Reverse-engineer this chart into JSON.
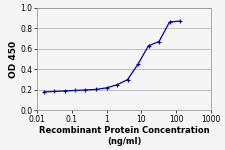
{
  "x": [
    0.016,
    0.031,
    0.063,
    0.125,
    0.25,
    0.5,
    1.0,
    2.0,
    4.0,
    8.0,
    16.0,
    32.0,
    64.0,
    128.0
  ],
  "y": [
    0.18,
    0.185,
    0.19,
    0.195,
    0.2,
    0.205,
    0.22,
    0.25,
    0.3,
    0.45,
    0.63,
    0.67,
    0.86,
    0.87
  ],
  "line_color": "#0000aa",
  "marker": "+",
  "marker_color": "#0000aa",
  "marker_size": 3.5,
  "marker_linewidth": 0.8,
  "line_width": 0.9,
  "xlabel_line1": "Recombinant Protein Concentration",
  "xlabel_line2": "(ng/ml)",
  "ylabel": "OD 450",
  "xlim": [
    0.01,
    1000
  ],
  "ylim": [
    0.0,
    1.0
  ],
  "yticks": [
    0.0,
    0.2,
    0.4,
    0.6,
    0.8,
    1.0
  ],
  "xtick_labels": [
    "0.01",
    "0.1",
    "1",
    "10",
    "100",
    "1000"
  ],
  "xtick_vals": [
    0.01,
    0.1,
    1,
    10,
    100,
    1000
  ],
  "xlabel_fontsize": 6.0,
  "ylabel_fontsize": 6.5,
  "tick_fontsize": 5.5,
  "label_color": "#000000",
  "tick_color": "#000000",
  "grid_color": "#aaaaaa",
  "spine_color": "#888888",
  "background_color": "#f5f5f5",
  "plot_bg_color": "#f5f5f5"
}
